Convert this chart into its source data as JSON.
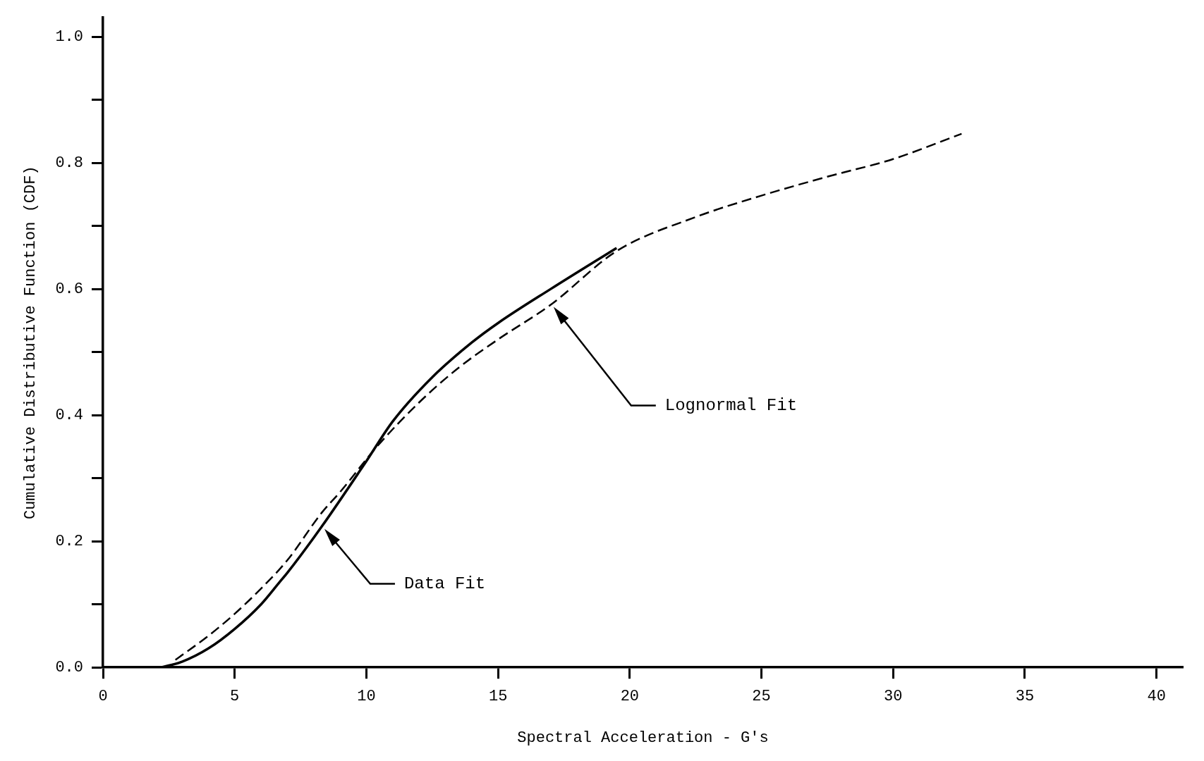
{
  "chart_data": {
    "type": "line",
    "xlabel": "Spectral Acceleration - G's",
    "ylabel": "Cumulative Distributive Function (CDF)",
    "xlim": [
      0,
      41
    ],
    "ylim": [
      0,
      1.03
    ],
    "xticks": [
      0,
      5,
      10,
      15,
      20,
      25,
      30,
      35,
      40
    ],
    "yticks": [
      {
        "value": 0,
        "label": "0.0"
      },
      {
        "value": 0.1,
        "label": null
      },
      {
        "value": 0.2,
        "label": "0.2"
      },
      {
        "value": 0.3,
        "label": null
      },
      {
        "value": 0.4,
        "label": "0.4"
      },
      {
        "value": 0.5,
        "label": null
      },
      {
        "value": 0.6,
        "label": "0.6"
      },
      {
        "value": 0.7,
        "label": null
      },
      {
        "value": 0.8,
        "label": "0.8"
      },
      {
        "value": 0.9,
        "label": null
      },
      {
        "value": 1.0,
        "label": "1.0"
      }
    ],
    "grid": false,
    "legend": false,
    "marker": "none",
    "series": [
      {
        "color": "#000000",
        "line_style": "solid",
        "x": [
          2.2,
          3.0,
          4.0,
          5.0,
          6.0,
          6.7,
          7.0,
          8.3,
          10.0,
          11.0,
          12.5,
          14.0,
          15.0,
          17.0,
          19.5
        ],
        "values": [
          0,
          0.009,
          0.03,
          0.061,
          0.1,
          0.135,
          0.15,
          0.223,
          0.327,
          0.39,
          0.46,
          0.515,
          0.546,
          0.6,
          0.665
        ]
      },
      {
        "color": "#000000",
        "line_style": "dashed",
        "x": [
          2.75,
          4.0,
          5.0,
          6.0,
          7.0,
          8.3,
          9.0,
          10.4,
          12.0,
          13.5,
          15.0,
          17.0,
          19.5,
          22.5,
          25.0,
          27.5,
          30.0,
          32.6
        ],
        "values": [
          0.012,
          0.05,
          0.085,
          0.125,
          0.17,
          0.245,
          0.278,
          0.35,
          0.42,
          0.475,
          0.52,
          0.575,
          0.66,
          0.714,
          0.748,
          0.778,
          0.806,
          0.846
        ]
      }
    ],
    "annotations": [
      "Lognormal Fit",
      "Data Fit"
    ]
  }
}
